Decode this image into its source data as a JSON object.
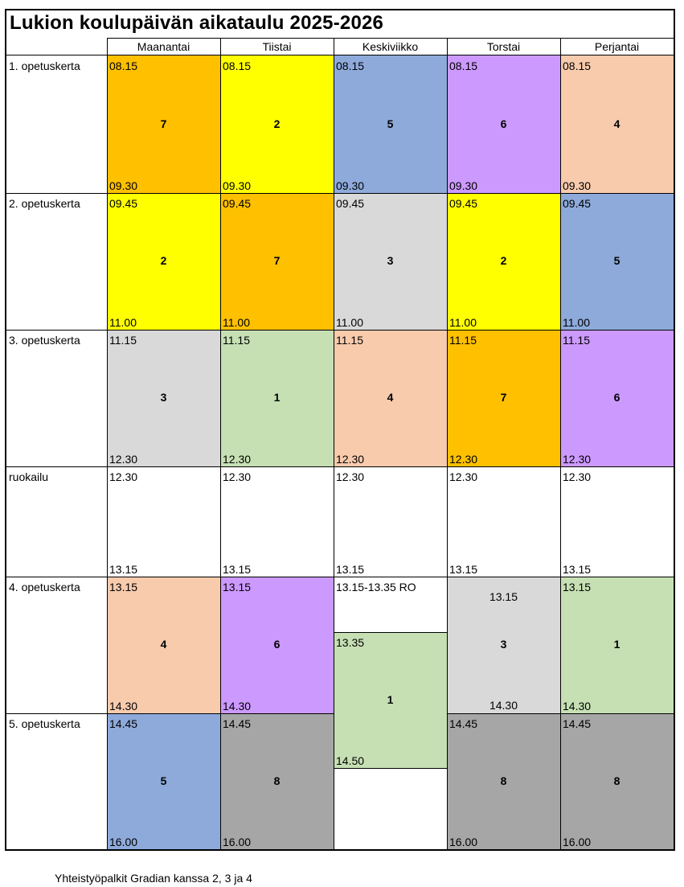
{
  "title": "Lukion koulupäivän aikataulu 2025-2026",
  "days": [
    "Maanantai",
    "Tiistai",
    "Keskiviikko",
    "Torstai",
    "Perjantai"
  ],
  "rows": [
    "1. opetuskerta",
    "2. opetuskerta",
    "3. opetuskerta",
    "ruokailu",
    "4. opetuskerta",
    "5. opetuskerta"
  ],
  "colors": {
    "c1": "#c6e0b4",
    "c2": "#ffff00",
    "c3": "#d9d9d9",
    "c4": "#f8cbad",
    "c5": "#8eaadb",
    "c6": "#cc99ff",
    "c7": "#ffc000",
    "c8": "#a6a6a6",
    "white": "#ffffff"
  },
  "blocks": [
    {
      "day": 0,
      "row": 0,
      "num": "7",
      "start": "08.15",
      "end": "09.30",
      "color": "c7"
    },
    {
      "day": 1,
      "row": 0,
      "num": "2",
      "start": "08.15",
      "end": "09.30",
      "color": "c2"
    },
    {
      "day": 2,
      "row": 0,
      "num": "5",
      "start": "08.15",
      "end": "09.30",
      "color": "c5"
    },
    {
      "day": 3,
      "row": 0,
      "num": "6",
      "start": "08.15",
      "end": "09.30",
      "color": "c6"
    },
    {
      "day": 4,
      "row": 0,
      "num": "4",
      "start": "08.15",
      "end": "09.30",
      "color": "c4"
    },
    {
      "day": 0,
      "row": 1,
      "num": "2",
      "start": "09.45",
      "end": "11.00",
      "color": "c2"
    },
    {
      "day": 1,
      "row": 1,
      "num": "7",
      "start": "09.45",
      "end": "11.00",
      "color": "c7"
    },
    {
      "day": 2,
      "row": 1,
      "num": "3",
      "start": "09.45",
      "end": "11.00",
      "color": "c3"
    },
    {
      "day": 3,
      "row": 1,
      "num": "2",
      "start": "09.45",
      "end": "11.00",
      "color": "c2"
    },
    {
      "day": 4,
      "row": 1,
      "num": "5",
      "start": "09.45",
      "end": "11.00",
      "color": "c5"
    },
    {
      "day": 0,
      "row": 2,
      "num": "3",
      "start": "11.15",
      "end": "12.30",
      "color": "c3"
    },
    {
      "day": 1,
      "row": 2,
      "num": "1",
      "start": "11.15",
      "end": "12.30",
      "color": "c1"
    },
    {
      "day": 2,
      "row": 2,
      "num": "4",
      "start": "11.15",
      "end": "12.30",
      "color": "c4"
    },
    {
      "day": 3,
      "row": 2,
      "num": "7",
      "start": "11.15",
      "end": "12.30",
      "color": "c7"
    },
    {
      "day": 4,
      "row": 2,
      "num": "6",
      "start": "11.15",
      "end": "12.30",
      "color": "c6"
    },
    {
      "day": 0,
      "row": 3,
      "num": "",
      "start": "12.30",
      "end": "13.15",
      "color": "white"
    },
    {
      "day": 1,
      "row": 3,
      "num": "",
      "start": "12.30",
      "end": "13.15",
      "color": "white"
    },
    {
      "day": 2,
      "row": 3,
      "num": "",
      "start": "12.30",
      "end": "13.15",
      "color": "white"
    },
    {
      "day": 3,
      "row": 3,
      "num": "",
      "start": "12.30",
      "end": "13.15",
      "color": "white"
    },
    {
      "day": 4,
      "row": 3,
      "num": "",
      "start": "12.30",
      "end": "13.15",
      "color": "white"
    },
    {
      "day": 0,
      "row": 4,
      "num": "4",
      "start": "13.15",
      "end": "14.30",
      "color": "c4"
    },
    {
      "day": 1,
      "row": 4,
      "num": "6",
      "start": "13.15",
      "end": "14.30",
      "color": "c6"
    },
    {
      "day": 4,
      "row": 4,
      "num": "1",
      "start": "13.15",
      "end": "14.30",
      "color": "c1"
    },
    {
      "day": 0,
      "row": 5,
      "num": "5",
      "start": "14.45",
      "end": "16.00",
      "color": "c5"
    },
    {
      "day": 1,
      "row": 5,
      "num": "8",
      "start": "14.45",
      "end": "16.00",
      "color": "c8"
    },
    {
      "day": 3,
      "row": 5,
      "num": "8",
      "start": "14.45",
      "end": "16.00",
      "color": "c8"
    },
    {
      "day": 4,
      "row": 5,
      "num": "8",
      "start": "14.45",
      "end": "16.00",
      "color": "c8"
    }
  ],
  "special": {
    "wed_ro": "13.15-13.35 RO",
    "wed_1": {
      "num": "1",
      "start": "13.35",
      "end": "14.50",
      "color": "c1"
    },
    "thu_3": {
      "num": "3",
      "start": "13.15",
      "end": "14.30",
      "color": "c3"
    }
  },
  "footnote": "Yhteistyöpalkit Gradian kanssa 2, 3 ja 4"
}
